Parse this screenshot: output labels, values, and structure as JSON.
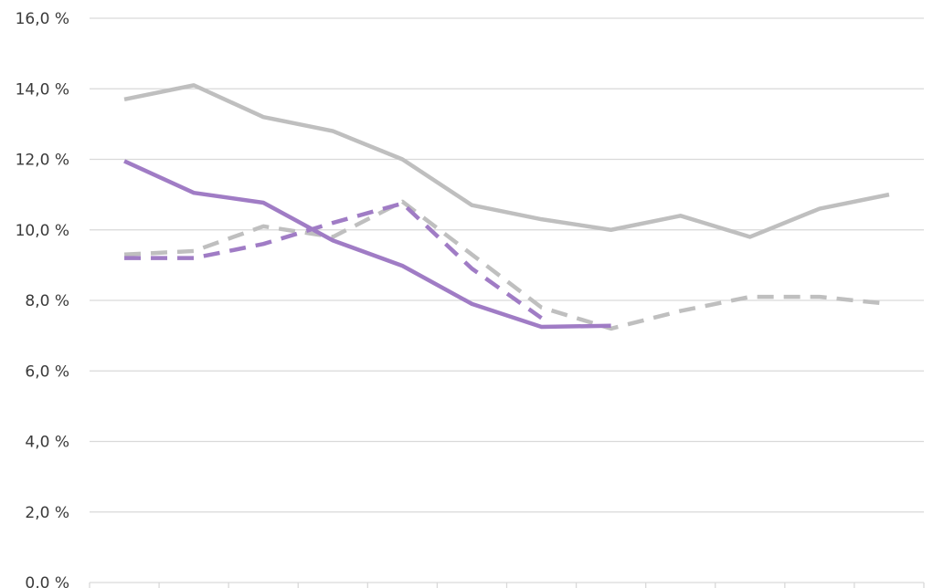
{
  "chart_data": {
    "type": "line",
    "title": "",
    "xlabel": "",
    "ylabel": "",
    "ylim": [
      0,
      16
    ],
    "yticks": [
      0,
      2,
      4,
      6,
      8,
      10,
      12,
      14,
      16
    ],
    "ytick_labels": [
      "0,0 %",
      "2,0 %",
      "4,0 %",
      "6,0 %",
      "8,0 %",
      "10,0 %",
      "12,0 %",
      "14,0 %",
      "16,0 %"
    ],
    "x_count": 12,
    "grid": true,
    "legend": "none",
    "series": [
      {
        "style": "solid",
        "color": "#bfbfbf",
        "values": [
          13.7,
          14.1,
          13.2,
          12.8,
          12.0,
          10.7,
          10.3,
          10.0,
          10.4,
          9.8,
          10.6,
          11.0
        ]
      },
      {
        "style": "dashed",
        "color": "#bfbfbf",
        "values": [
          9.3,
          9.4,
          10.1,
          9.8,
          10.8,
          9.3,
          7.8,
          7.2,
          7.7,
          8.1,
          8.1,
          7.9
        ]
      },
      {
        "style": "solid",
        "color": "#a07cc5",
        "values": [
          11.95,
          11.05,
          10.77,
          9.7,
          8.98,
          7.9,
          7.25,
          7.28,
          null,
          null,
          null,
          null
        ]
      },
      {
        "style": "dashed",
        "color": "#a07cc5",
        "values": [
          9.2,
          9.2,
          9.6,
          10.2,
          10.75,
          8.9,
          7.5,
          null,
          null,
          null,
          null,
          null
        ]
      }
    ]
  }
}
